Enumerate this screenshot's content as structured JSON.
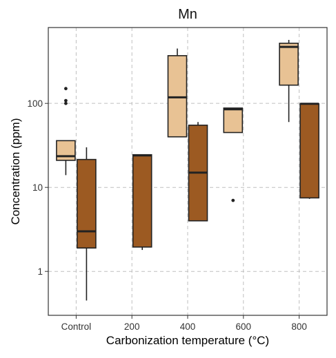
{
  "chart_data": {
    "type": "box",
    "title": "Mn",
    "xlabel": "Carbonization temperature (°C)",
    "ylabel": "Concentration (ppm)",
    "y_scale": "log",
    "ylim": [
      0.3,
      800
    ],
    "y_ticks": [
      {
        "value": 1,
        "label": "1"
      },
      {
        "value": 10,
        "label": "10"
      },
      {
        "value": 100,
        "label": "100"
      }
    ],
    "categories": [
      "Control",
      "200",
      "400",
      "600",
      "800"
    ],
    "grid": true,
    "series": [
      {
        "color": "#E8C294",
        "boxes": [
          {
            "category": "Control",
            "whisker_low": 14,
            "q1": 21,
            "median": 23.5,
            "q3": 36,
            "whisker_high": 36,
            "outliers": [
              100,
              108,
              150
            ]
          },
          {
            "category": "200",
            "whisker_low": null,
            "q1": null,
            "median": null,
            "q3": null,
            "whisker_high": null,
            "outliers": []
          },
          {
            "category": "400",
            "whisker_low": 40,
            "q1": 40,
            "median": 118,
            "q3": 370,
            "whisker_high": 450,
            "outliers": []
          },
          {
            "category": "600",
            "whisker_low": 45,
            "q1": 45,
            "median": 85,
            "q3": 88,
            "whisker_high": 88,
            "outliers": [
              7
            ]
          },
          {
            "category": "800",
            "whisker_low": 60,
            "q1": 165,
            "median": 470,
            "q3": 520,
            "whisker_high": 570,
            "outliers": []
          }
        ]
      },
      {
        "color": "#9C5A22",
        "boxes": [
          {
            "category": "Control",
            "whisker_low": 0.45,
            "q1": 1.9,
            "median": 3,
            "q3": 21.5,
            "whisker_high": 30,
            "outliers": []
          },
          {
            "category": "200",
            "whisker_low": 1.8,
            "q1": 1.95,
            "median": 24,
            "q3": 24.5,
            "whisker_high": 24.5,
            "outliers": []
          },
          {
            "category": "400",
            "whisker_low": 4,
            "q1": 4,
            "median": 15,
            "q3": 55,
            "whisker_high": 60,
            "outliers": []
          },
          {
            "category": "600",
            "whisker_low": null,
            "q1": null,
            "median": null,
            "q3": null,
            "whisker_high": null,
            "outliers": []
          },
          {
            "category": "800",
            "whisker_low": 7.3,
            "q1": 7.5,
            "median": 99,
            "q3": 99,
            "whisker_high": 100,
            "outliers": []
          }
        ]
      }
    ]
  }
}
